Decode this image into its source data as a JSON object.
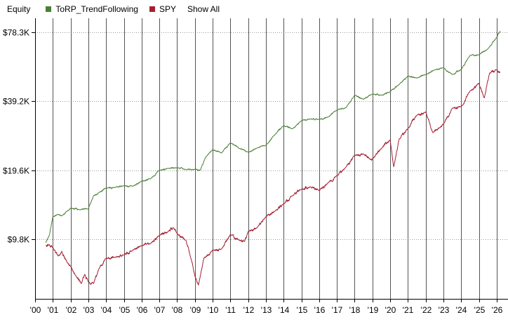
{
  "header": {
    "title": "Equity",
    "show_all_label": "Show All"
  },
  "colors": {
    "torp": "#4a7f36",
    "spy": "#a41f33",
    "grid": "#555555",
    "grid_h": "#999999"
  },
  "chart_data": {
    "type": "line",
    "title": "Equity",
    "xlabel": "",
    "ylabel": "",
    "y_scale": "log",
    "grid": true,
    "legend_placement": "top-left",
    "ylim": [
      5400,
      90000
    ],
    "xlim": [
      2000,
      2026.4
    ],
    "y_ticks": [
      {
        "value": 9800,
        "label": "$9.8K"
      },
      {
        "value": 19600,
        "label": "$19.6K"
      },
      {
        "value": 39200,
        "label": "$39.2K"
      },
      {
        "value": 78300,
        "label": "$78.3K"
      }
    ],
    "x_ticks": [
      {
        "value": 2000.0,
        "label": "'00"
      },
      {
        "value": 2001.0,
        "label": "'01"
      },
      {
        "value": 2002.0,
        "label": "'02"
      },
      {
        "value": 2003.0,
        "label": "'03"
      },
      {
        "value": 2004.0,
        "label": "'04"
      },
      {
        "value": 2005.0,
        "label": "'05"
      },
      {
        "value": 2006.0,
        "label": "'06"
      },
      {
        "value": 2007.0,
        "label": "'07"
      },
      {
        "value": 2008.0,
        "label": "'08"
      },
      {
        "value": 2009.0,
        "label": "'09"
      },
      {
        "value": 2010.0,
        "label": "'10"
      },
      {
        "value": 2011.0,
        "label": "'11"
      },
      {
        "value": 2012.0,
        "label": "'12"
      },
      {
        "value": 2013.0,
        "label": "'13"
      },
      {
        "value": 2014.0,
        "label": "'14"
      },
      {
        "value": 2015.0,
        "label": "'15"
      },
      {
        "value": 2016.0,
        "label": "'16"
      },
      {
        "value": 2017.0,
        "label": "'17"
      },
      {
        "value": 2018.0,
        "label": "'18"
      },
      {
        "value": 2019.0,
        "label": "'19"
      },
      {
        "value": 2020.0,
        "label": "'20"
      },
      {
        "value": 2021.0,
        "label": "'21"
      },
      {
        "value": 2022.0,
        "label": "'22"
      },
      {
        "value": 2023.0,
        "label": "'23"
      },
      {
        "value": 2024.0,
        "label": "'24"
      },
      {
        "value": 2025.0,
        "label": "'25"
      },
      {
        "value": 2026.0,
        "label": "'26"
      }
    ],
    "series": [
      {
        "name": "ToRP_TrendFollowing",
        "color": "#4a7f36",
        "x": [
          2000.6,
          2000.8,
          2001.0,
          2001.3,
          2001.5,
          2001.8,
          2002.0,
          2002.5,
          2003.0,
          2003.3,
          2003.6,
          2004.0,
          2004.5,
          2005.0,
          2005.5,
          2006.0,
          2006.5,
          2007.0,
          2007.5,
          2008.0,
          2008.5,
          2009.0,
          2009.3,
          2009.6,
          2010.0,
          2010.5,
          2011.0,
          2011.5,
          2012.0,
          2012.5,
          2013.0,
          2013.5,
          2014.0,
          2014.5,
          2015.0,
          2015.5,
          2016.0,
          2016.5,
          2017.0,
          2017.5,
          2018.0,
          2018.5,
          2019.0,
          2019.5,
          2020.0,
          2020.5,
          2021.0,
          2021.5,
          2022.0,
          2022.5,
          2023.0,
          2023.5,
          2024.0,
          2024.5,
          2025.0,
          2025.5,
          2026.0,
          2026.2
        ],
        "y": [
          9500,
          10200,
          12300,
          12600,
          12400,
          13000,
          13400,
          13200,
          13300,
          15200,
          15700,
          16400,
          16500,
          16800,
          16700,
          17600,
          18000,
          19600,
          20000,
          20100,
          19700,
          19800,
          19600,
          22300,
          24100,
          23300,
          25800,
          24400,
          23500,
          24500,
          25200,
          28000,
          30700,
          29700,
          32200,
          32800,
          32700,
          33400,
          35800,
          36700,
          41600,
          39900,
          42100,
          41600,
          43100,
          46300,
          50400,
          49400,
          51200,
          53600,
          54800,
          51200,
          53800,
          62000,
          62400,
          66200,
          74300,
          79200
        ]
      },
      {
        "name": "SPY",
        "color": "#a41f33",
        "x": [
          2000.6,
          2000.8,
          2001.0,
          2001.3,
          2001.5,
          2001.8,
          2002.0,
          2002.3,
          2002.6,
          2002.8,
          2003.0,
          2003.3,
          2003.6,
          2004.0,
          2004.5,
          2005.0,
          2005.5,
          2006.0,
          2006.5,
          2007.0,
          2007.5,
          2007.8,
          2008.0,
          2008.5,
          2008.8,
          2009.0,
          2009.2,
          2009.5,
          2010.0,
          2010.5,
          2011.0,
          2011.5,
          2011.8,
          2012.0,
          2012.5,
          2013.0,
          2013.5,
          2014.0,
          2014.5,
          2015.0,
          2015.5,
          2016.0,
          2016.5,
          2017.0,
          2017.5,
          2018.0,
          2018.5,
          2018.9,
          2019.0,
          2019.5,
          2020.0,
          2020.2,
          2020.5,
          2021.0,
          2021.5,
          2022.0,
          2022.4,
          2022.8,
          2023.0,
          2023.5,
          2024.0,
          2024.5,
          2025.0,
          2025.3,
          2025.6,
          2026.0,
          2026.2
        ],
        "y": [
          9200,
          9300,
          9000,
          8300,
          8700,
          7800,
          7500,
          6800,
          6300,
          6900,
          6400,
          6300,
          7300,
          8100,
          8200,
          8400,
          8800,
          9200,
          9400,
          10200,
          10600,
          11000,
          10400,
          9700,
          8000,
          6800,
          6200,
          8100,
          8800,
          8900,
          10300,
          9700,
          9600,
          10600,
          11000,
          12300,
          13000,
          14000,
          15200,
          16200,
          16600,
          16000,
          17300,
          18600,
          20200,
          22800,
          23100,
          21800,
          22000,
          24300,
          26600,
          20300,
          26700,
          29800,
          34000,
          35200,
          28600,
          30100,
          31100,
          36500,
          37100,
          43400,
          46900,
          40500,
          52000,
          53600,
          52200
        ]
      }
    ]
  }
}
